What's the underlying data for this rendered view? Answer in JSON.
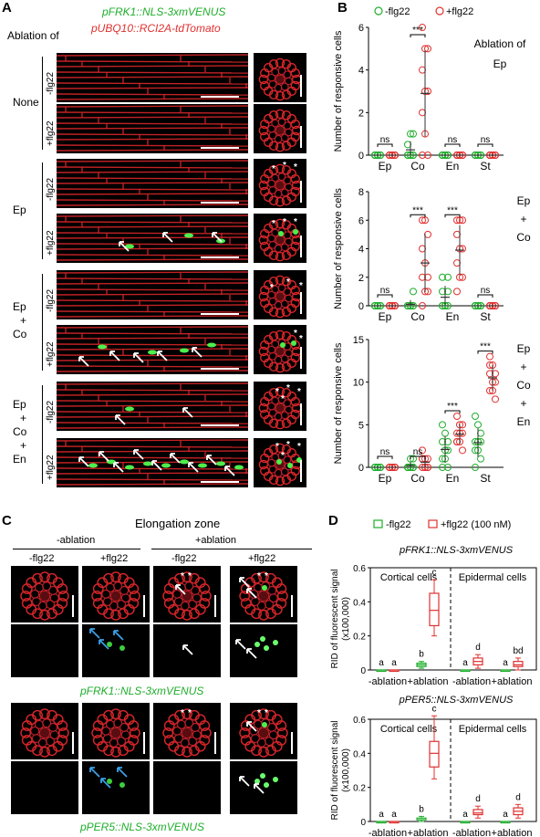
{
  "panels": {
    "A": "A",
    "B": "B",
    "C": "C",
    "D": "D"
  },
  "panelA": {
    "construct_green": "pFRK1::NLS-3xmVENUS",
    "construct_red": "pUBQ10::RCI2A-tdTomato",
    "ablation_of": "Ablation of",
    "groups": [
      {
        "label_lines": [
          "None"
        ],
        "rows": [
          "-flg22",
          "+flg22"
        ]
      },
      {
        "label_lines": [
          "Ep"
        ],
        "rows": [
          "-flg22",
          "+flg22"
        ]
      },
      {
        "label_lines": [
          "Ep",
          "+",
          "Co"
        ],
        "rows": [
          "-flg22",
          "+flg22"
        ]
      },
      {
        "label_lines": [
          "Ep",
          "+",
          "Co",
          "+",
          "En"
        ],
        "rows": [
          "-flg22",
          "+flg22"
        ]
      }
    ]
  },
  "panelB": {
    "legend": {
      "minus": "-flg22",
      "plus": "+flg22"
    },
    "ylabel": "Number of responsive cells",
    "categories": [
      "Ep",
      "Co",
      "En",
      "St"
    ],
    "plots": [
      {
        "ablation_lines": [
          "Ablation of",
          "Ep"
        ],
        "ylim": [
          0,
          6
        ],
        "ticks": [
          0,
          2,
          4,
          6
        ],
        "sig": [
          "ns",
          "***",
          "ns",
          "ns"
        ]
      },
      {
        "ablation_lines": [
          "Ep",
          "+",
          "Co"
        ],
        "ylim": [
          0,
          8
        ],
        "ticks": [
          0,
          2,
          4,
          6,
          8
        ],
        "sig": [
          "ns",
          "***",
          "***",
          "ns"
        ]
      },
      {
        "ablation_lines": [
          "Ep",
          "+",
          "Co",
          "+",
          "En"
        ],
        "ylim": [
          0,
          15
        ],
        "ticks": [
          0,
          5,
          10,
          15
        ],
        "sig": [
          "ns",
          "ns",
          "***",
          "***"
        ]
      }
    ]
  },
  "panelC": {
    "title": "Elongation zone",
    "minus_ablation": "-ablation",
    "plus_ablation": "+ablation",
    "cols": [
      "-flg22",
      "+flg22",
      "-flg22",
      "+flg22"
    ],
    "caption1": "pFRK1::NLS-3xmVENUS",
    "caption2": "pPER5::NLS-3xmVENUS"
  },
  "panelD": {
    "legend": {
      "minus": "-flg22",
      "plus": "+flg22 (100 nM)"
    },
    "ylabel_lines": [
      "RID of fluorescent signal",
      "(x100,000)"
    ],
    "xlabels": [
      "-ablation",
      "+ablation",
      "-ablation",
      "+ablation"
    ],
    "plots": [
      {
        "title": "pFRK1::NLS-3xmVENUS",
        "cortical": "Cortical cells",
        "epidermal": "Epidermal cells",
        "ticks": [
          0,
          0.2,
          0.4,
          0.6
        ],
        "ylim": [
          0,
          0.6
        ],
        "letters": [
          "a",
          "a",
          "b",
          "c",
          "a",
          "d",
          "a",
          "bd"
        ]
      },
      {
        "title": "pPER5::NLS-3xmVENUS",
        "cortical": "Cortical cells",
        "epidermal": "Epidermal cells",
        "ticks": [
          0,
          0.2,
          0.4,
          0.6
        ],
        "ylim": [
          0,
          0.6
        ],
        "letters": [
          "a",
          "a",
          "b",
          "c",
          "a",
          "d",
          "a",
          "d"
        ]
      }
    ]
  },
  "chart_data": [
    {
      "type": "scatter",
      "title": "",
      "ylabel": "Number of responsive cells",
      "categories": [
        "Ep",
        "Co",
        "En",
        "St"
      ],
      "ylim": [
        0,
        6
      ],
      "series": [
        {
          "name": "-flg22",
          "values": [
            [
              0,
              0,
              0,
              0,
              0,
              0,
              0,
              0,
              0,
              0
            ],
            [
              0,
              0,
              0,
              0,
              0,
              0,
              0,
              1,
              1,
              0.5
            ],
            [
              0,
              0,
              0,
              0,
              0,
              0,
              0,
              0,
              0,
              0
            ],
            [
              0,
              0,
              0,
              0,
              0,
              0,
              0,
              0,
              0,
              0
            ]
          ]
        },
        {
          "name": "+flg22",
          "values": [
            [
              0,
              0,
              0,
              0,
              0,
              0,
              0,
              0,
              0,
              0
            ],
            [
              6,
              5,
              5,
              4,
              3,
              3,
              2,
              1,
              0,
              0
            ],
            [
              0,
              0,
              0,
              0,
              0,
              0,
              0,
              0,
              0,
              0
            ],
            [
              0,
              0,
              0,
              0,
              0,
              0,
              0,
              0,
              0,
              0
            ]
          ]
        }
      ]
    },
    {
      "type": "scatter",
      "title": "",
      "ylabel": "Number of responsive cells",
      "categories": [
        "Ep",
        "Co",
        "En",
        "St"
      ],
      "ylim": [
        0,
        8
      ],
      "series": [
        {
          "name": "-flg22",
          "values": [
            [
              0,
              0,
              0,
              0,
              0,
              0,
              0,
              0,
              0,
              0
            ],
            [
              0,
              0,
              0,
              0,
              0,
              0,
              0,
              0,
              1,
              0
            ],
            [
              0,
              0,
              0,
              0,
              0,
              1,
              1,
              0,
              2,
              2
            ],
            [
              0,
              0,
              0,
              0,
              0,
              0,
              0,
              0,
              0,
              0
            ]
          ]
        },
        {
          "name": "+flg22",
          "values": [
            [
              0,
              0,
              0,
              0,
              0,
              0,
              0,
              0,
              0,
              0
            ],
            [
              6,
              6,
              5,
              4,
              3,
              2,
              2,
              1,
              1,
              0
            ],
            [
              6,
              6,
              6,
              5,
              4,
              4,
              3,
              2,
              2,
              1
            ],
            [
              0,
              0,
              0,
              0,
              0,
              0,
              0,
              0,
              0,
              0
            ]
          ]
        }
      ]
    },
    {
      "type": "scatter",
      "title": "",
      "ylabel": "Number of responsive cells",
      "categories": [
        "Ep",
        "Co",
        "En",
        "St"
      ],
      "ylim": [
        0,
        15
      ],
      "series": [
        {
          "name": "-flg22",
          "values": [
            [
              0,
              0,
              0,
              0,
              0,
              0,
              0,
              0,
              0,
              0
            ],
            [
              0,
              0,
              0,
              0,
              1,
              1,
              0,
              0,
              0,
              0
            ],
            [
              5,
              4,
              3,
              3,
              2,
              2,
              1,
              1,
              0,
              0
            ],
            [
              6,
              5,
              4,
              3,
              3,
              3,
              2,
              2,
              1,
              0
            ]
          ]
        },
        {
          "name": "+flg22",
          "values": [
            [
              0,
              0,
              0,
              0,
              0,
              0,
              0,
              0,
              0,
              0
            ],
            [
              2,
              1,
              1,
              1,
              0,
              0,
              0,
              0,
              0,
              1
            ],
            [
              6,
              5,
              5,
              4,
              4,
              4,
              3,
              3,
              2,
              3
            ],
            [
              13,
              12,
              11,
              11,
              10,
              10,
              9,
              9,
              8,
              12
            ]
          ]
        }
      ]
    },
    {
      "type": "box",
      "title": "pFRK1::NLS-3xmVENUS",
      "ylabel": "RID of fluorescent signal (x100,000)",
      "ylim": [
        0,
        0.6
      ],
      "boxes": [
        {
          "group": "Cortical cells",
          "cond": "-ablation",
          "series": "-flg22",
          "min": 0,
          "q1": 0,
          "median": 0,
          "q3": 0,
          "max": 0
        },
        {
          "group": "Cortical cells",
          "cond": "-ablation",
          "series": "+flg22",
          "min": 0,
          "q1": 0,
          "median": 0,
          "q3": 0,
          "max": 0
        },
        {
          "group": "Cortical cells",
          "cond": "+ablation",
          "series": "-flg22",
          "min": 0.01,
          "q1": 0.02,
          "median": 0.03,
          "q3": 0.04,
          "max": 0.05
        },
        {
          "group": "Cortical cells",
          "cond": "+ablation",
          "series": "+flg22",
          "min": 0.2,
          "q1": 0.26,
          "median": 0.35,
          "q3": 0.45,
          "max": 0.53
        },
        {
          "group": "Epidermal cells",
          "cond": "-ablation",
          "series": "-flg22",
          "min": 0,
          "q1": 0,
          "median": 0,
          "q3": 0,
          "max": 0
        },
        {
          "group": "Epidermal cells",
          "cond": "-ablation",
          "series": "+flg22",
          "min": 0.01,
          "q1": 0.03,
          "median": 0.05,
          "q3": 0.07,
          "max": 0.09
        },
        {
          "group": "Epidermal cells",
          "cond": "+ablation",
          "series": "-flg22",
          "min": 0,
          "q1": 0,
          "median": 0,
          "q3": 0,
          "max": 0
        },
        {
          "group": "Epidermal cells",
          "cond": "+ablation",
          "series": "+flg22",
          "min": 0.0,
          "q1": 0.02,
          "median": 0.03,
          "q3": 0.05,
          "max": 0.07
        }
      ]
    },
    {
      "type": "box",
      "title": "pPER5::NLS-3xmVENUS",
      "ylabel": "RID of fluorescent signal (x100,000)",
      "ylim": [
        0,
        0.6
      ],
      "boxes": [
        {
          "group": "Cortical cells",
          "cond": "-ablation",
          "series": "-flg22",
          "min": 0,
          "q1": 0,
          "median": 0,
          "q3": 0,
          "max": 0
        },
        {
          "group": "Cortical cells",
          "cond": "-ablation",
          "series": "+flg22",
          "min": 0,
          "q1": 0,
          "median": 0,
          "q3": 0,
          "max": 0
        },
        {
          "group": "Cortical cells",
          "cond": "+ablation",
          "series": "-flg22",
          "min": 0.0,
          "q1": 0.01,
          "median": 0.01,
          "q3": 0.02,
          "max": 0.03
        },
        {
          "group": "Cortical cells",
          "cond": "+ablation",
          "series": "+flg22",
          "min": 0.25,
          "q1": 0.32,
          "median": 0.4,
          "q3": 0.47,
          "max": 0.62
        },
        {
          "group": "Epidermal cells",
          "cond": "-ablation",
          "series": "-flg22",
          "min": 0,
          "q1": 0,
          "median": 0,
          "q3": 0,
          "max": 0
        },
        {
          "group": "Epidermal cells",
          "cond": "-ablation",
          "series": "+flg22",
          "min": 0.02,
          "q1": 0.04,
          "median": 0.05,
          "q3": 0.07,
          "max": 0.09
        },
        {
          "group": "Epidermal cells",
          "cond": "+ablation",
          "series": "-flg22",
          "min": 0,
          "q1": 0,
          "median": 0,
          "q3": 0,
          "max": 0
        },
        {
          "group": "Epidermal cells",
          "cond": "+ablation",
          "series": "+flg22",
          "min": 0.02,
          "q1": 0.04,
          "median": 0.06,
          "q3": 0.08,
          "max": 0.1
        }
      ]
    }
  ]
}
